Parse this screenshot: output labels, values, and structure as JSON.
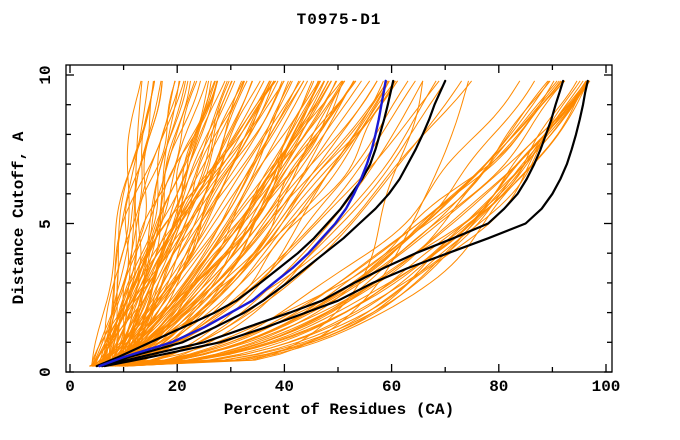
{
  "chart_data": {
    "type": "line",
    "title": "T0975-D1",
    "xlabel": "Percent of Residues (CA)",
    "ylabel": "Distance Cutoff, A",
    "xlim": [
      0,
      100
    ],
    "ylim": [
      0,
      10
    ],
    "grid": false,
    "legend": "none",
    "x_major_ticks": [
      0,
      20,
      40,
      60,
      80,
      100
    ],
    "x_minor_ticks": [
      10,
      30,
      50,
      70,
      90
    ],
    "y_major_ticks": [
      0,
      5,
      10
    ],
    "y_minor_ticks": [
      1,
      2,
      3,
      4,
      6,
      7,
      8,
      9
    ],
    "colors": {
      "background": "#ffffff",
      "axis": "#000000",
      "predictions": "#ff8a00",
      "highlight_black": "#000000",
      "highlight_blue": "#1a1ad6"
    },
    "highlighted_series": [
      {
        "name": "highlight-black-1",
        "color": "#000000",
        "width": 2.2,
        "points": [
          [
            0.2,
            5
          ],
          [
            0.5,
            9
          ],
          [
            1,
            15
          ],
          [
            1.5,
            21
          ],
          [
            2,
            27
          ],
          [
            2.4,
            31
          ],
          [
            3,
            35.5
          ],
          [
            3.5,
            39
          ],
          [
            4,
            42.5
          ],
          [
            4.5,
            45.5
          ],
          [
            5,
            48
          ],
          [
            5.5,
            50.5
          ],
          [
            6,
            52.5
          ],
          [
            6.5,
            54.5
          ],
          [
            7,
            56
          ],
          [
            7.5,
            57
          ],
          [
            8,
            57.8
          ],
          [
            8.5,
            58.6
          ],
          [
            9,
            59.3
          ],
          [
            9.4,
            59.8
          ],
          [
            9.8,
            60.3
          ]
        ]
      },
      {
        "name": "highlight-black-2",
        "color": "#000000",
        "width": 2.2,
        "points": [
          [
            0.2,
            6
          ],
          [
            0.5,
            11
          ],
          [
            1,
            21
          ],
          [
            1.5,
            27
          ],
          [
            2,
            32.5
          ],
          [
            2.4,
            36
          ],
          [
            3,
            40.5
          ],
          [
            3.5,
            44
          ],
          [
            4,
            47.5
          ],
          [
            4.5,
            51
          ],
          [
            5,
            54
          ],
          [
            5.5,
            57
          ],
          [
            6,
            59.5
          ],
          [
            6.5,
            61.5
          ],
          [
            7,
            63
          ],
          [
            7.5,
            64.5
          ],
          [
            8,
            65.8
          ],
          [
            8.5,
            67
          ],
          [
            9,
            68
          ],
          [
            9.4,
            69
          ],
          [
            9.8,
            70
          ]
        ]
      },
      {
        "name": "highlight-black-3",
        "color": "#000000",
        "width": 2.2,
        "points": [
          [
            0.2,
            6
          ],
          [
            0.5,
            13
          ],
          [
            1,
            25
          ],
          [
            1.5,
            33
          ],
          [
            2,
            41
          ],
          [
            2.4,
            47
          ],
          [
            3,
            53
          ],
          [
            3.5,
            58.5
          ],
          [
            4,
            64.5
          ],
          [
            4.5,
            71.5
          ],
          [
            5,
            78
          ],
          [
            5.5,
            81
          ],
          [
            6,
            83.5
          ],
          [
            6.5,
            85.2
          ],
          [
            7,
            86.6
          ],
          [
            7.5,
            87.8
          ],
          [
            8,
            88.8
          ],
          [
            8.5,
            89.8
          ],
          [
            9,
            90.6
          ],
          [
            9.4,
            91.3
          ],
          [
            9.8,
            92
          ]
        ]
      },
      {
        "name": "highlight-black-4",
        "color": "#000000",
        "width": 2.2,
        "points": [
          [
            0.2,
            6.5
          ],
          [
            0.5,
            15
          ],
          [
            1,
            28
          ],
          [
            1.5,
            36.5
          ],
          [
            2,
            44
          ],
          [
            2.4,
            50
          ],
          [
            3,
            56.5
          ],
          [
            3.5,
            63
          ],
          [
            4,
            70.5
          ],
          [
            4.5,
            78
          ],
          [
            5,
            85
          ],
          [
            5.5,
            88
          ],
          [
            6,
            90
          ],
          [
            6.5,
            91.5
          ],
          [
            7,
            92.7
          ],
          [
            7.5,
            93.6
          ],
          [
            8,
            94.4
          ],
          [
            8.5,
            95.1
          ],
          [
            9,
            95.7
          ],
          [
            9.4,
            96.1
          ],
          [
            9.8,
            96.6
          ]
        ]
      },
      {
        "name": "highlight-blue",
        "color": "#1a1ad6",
        "width": 2.4,
        "points": [
          [
            0.2,
            5.5
          ],
          [
            0.5,
            10
          ],
          [
            1,
            19
          ],
          [
            1.5,
            25
          ],
          [
            2,
            30
          ],
          [
            2.4,
            34
          ],
          [
            3,
            38
          ],
          [
            3.5,
            41.5
          ],
          [
            4,
            44.5
          ],
          [
            4.5,
            47
          ],
          [
            5,
            49.5
          ],
          [
            5.5,
            51.5
          ],
          [
            6,
            53
          ],
          [
            6.5,
            54.3
          ],
          [
            7,
            55.4
          ],
          [
            7.5,
            56.3
          ],
          [
            8,
            57
          ],
          [
            8.5,
            57.6
          ],
          [
            9,
            58.1
          ],
          [
            9.4,
            58.5
          ],
          [
            9.8,
            58.9
          ]
        ]
      }
    ],
    "background_series": {
      "name": "prediction-curves",
      "color": "#ff8a00",
      "width": 1,
      "seed": 11,
      "cutoff_range": [
        0.2,
        9.8
      ],
      "start_percent_range": [
        3.5,
        11
      ],
      "families": [
        {
          "count": 12,
          "top_range": [
            12,
            20
          ],
          "p_range": [
            0.95,
            1.3
          ],
          "skew": 0
        },
        {
          "count": 45,
          "top_range": [
            20,
            40
          ],
          "p_range": [
            0.8,
            1.2
          ],
          "skew": 0
        },
        {
          "count": 45,
          "top_range": [
            40,
            62
          ],
          "p_range": [
            0.55,
            0.85
          ],
          "skew": 0
        },
        {
          "count": 8,
          "top_range": [
            63,
            80
          ],
          "p_range": [
            0.5,
            0.7
          ],
          "skew": 0
        },
        {
          "count": 28,
          "top_range": [
            82,
            97
          ],
          "p_range": [
            0.35,
            0.55
          ],
          "skew": 1
        },
        {
          "count": 2,
          "top_range": [
            65,
            75
          ],
          "p_range": [
            0.18,
            0.25
          ],
          "skew": 0
        }
      ]
    }
  }
}
